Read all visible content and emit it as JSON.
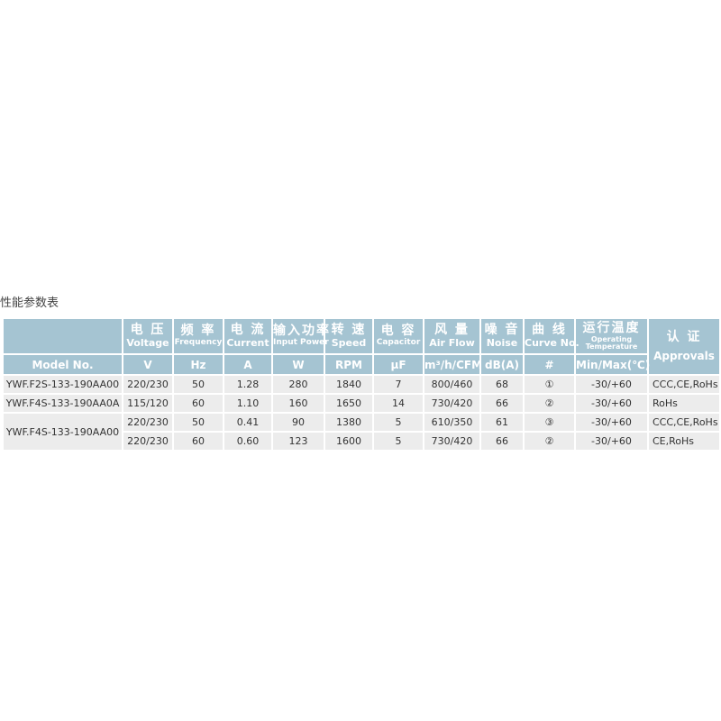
{
  "title": "性能参数表",
  "header": {
    "model": "Model No.",
    "columns": [
      {
        "cn": "电 压",
        "en": "Voltage",
        "unit": "V"
      },
      {
        "cn": "频 率",
        "en": "Frequency",
        "unit": "Hz"
      },
      {
        "cn": "电 流",
        "en": "Current",
        "unit": "A"
      },
      {
        "cn": "输入功率",
        "en": "Input Power",
        "unit": "W"
      },
      {
        "cn": "转 速",
        "en": "Speed",
        "unit": "RPM"
      },
      {
        "cn": "电 容",
        "en": "Capacitor",
        "unit": "μF"
      },
      {
        "cn": "风 量",
        "en": "Air Flow",
        "unit": "m³/h/CFM"
      },
      {
        "cn": "噪 音",
        "en": "Noise",
        "unit": "dB(A)"
      },
      {
        "cn": "曲 线",
        "en": "Curve No.",
        "unit": "#"
      },
      {
        "cn": "运行温度",
        "en": "Operating Temperature",
        "unit": "Min/Max(℃)"
      }
    ],
    "approvals_cn": "认 证",
    "approvals_en": "Approvals"
  },
  "rows": [
    {
      "model": "YWF.F2S-133-190AA00",
      "cells": [
        "220/230",
        "50",
        "1.28",
        "280",
        "1840",
        "7",
        "800/460",
        "68",
        "①",
        "-30/+60",
        "CCC,CE,RoHs"
      ]
    },
    {
      "model": "YWF.F4S-133-190AA0A",
      "cells": [
        "115/120",
        "60",
        "1.10",
        "160",
        "1650",
        "14",
        "730/420",
        "66",
        "②",
        "-30/+60",
        "RoHs"
      ]
    },
    {
      "model": "YWF.F4S-133-190AA00",
      "cells": [
        "220/230",
        "50",
        "0.41",
        "90",
        "1380",
        "5",
        "610/350",
        "61",
        "③",
        "-30/+60",
        "CCC,CE,RoHs"
      ]
    },
    {
      "model": "",
      "cells": [
        "220/230",
        "60",
        "0.60",
        "123",
        "1600",
        "5",
        "730/420",
        "66",
        "②",
        "-30/+60",
        "CE,RoHs"
      ]
    }
  ]
}
